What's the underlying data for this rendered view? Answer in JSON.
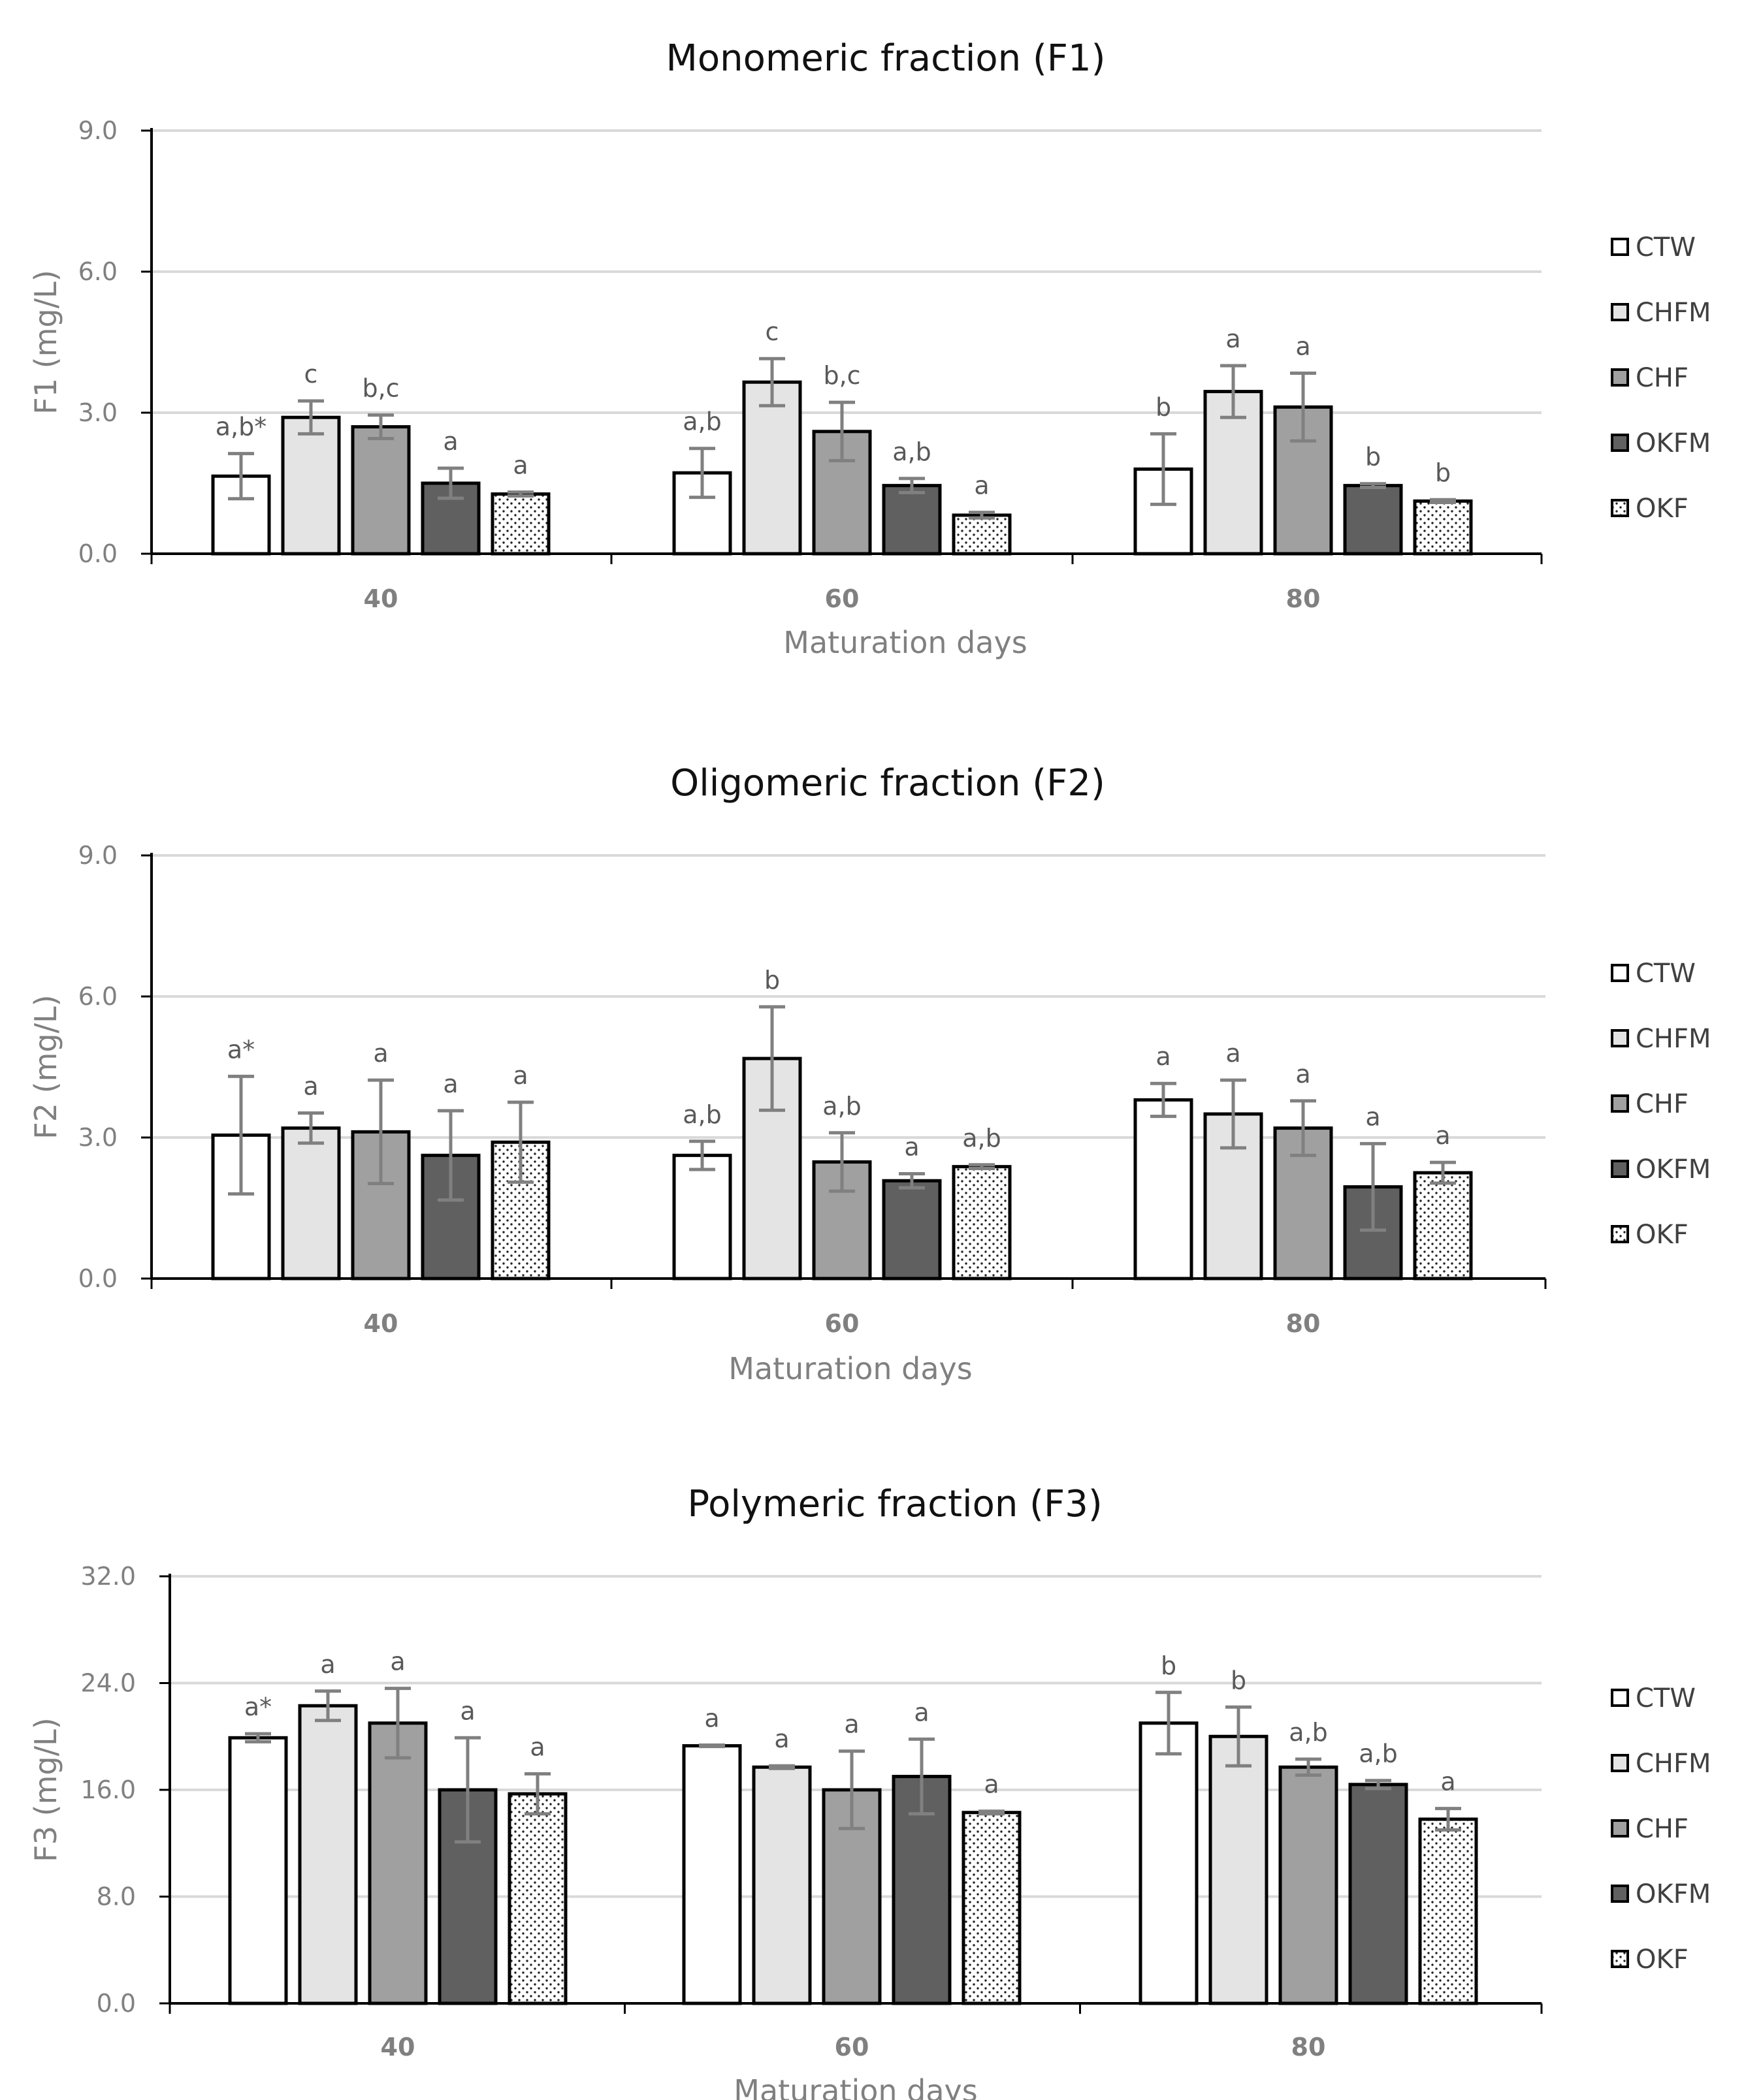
{
  "colors": {
    "CTW": "#ffffff",
    "CHFM": "#e4e4e4",
    "CHF": "#a0a0a0",
    "OKFM": "#606060",
    "OKF": "dots",
    "grid": "#d9d9d9",
    "error_bar": "#808080",
    "axis": "#000000"
  },
  "chart_data": [
    {
      "type": "bar",
      "title": "Monomeric fraction (F1)",
      "ylabel": "F1 (mg/L)",
      "xlabel": "Maturation days",
      "ylim": [
        0,
        9
      ],
      "yticks": [
        "0.0",
        "3.0",
        "6.0",
        "9.0"
      ],
      "categories": [
        "40",
        "60",
        "80"
      ],
      "legend": [
        "CTW",
        "CHFM",
        "CHF",
        "OKFM",
        "OKF"
      ],
      "series": [
        {
          "name": "CTW",
          "values": [
            1.65,
            1.72,
            1.8
          ],
          "errors": [
            0.48,
            0.52,
            0.75
          ],
          "labels": [
            "a,b*",
            "a,b",
            "b"
          ]
        },
        {
          "name": "CHFM",
          "values": [
            2.9,
            3.65,
            3.45
          ],
          "errors": [
            0.35,
            0.5,
            0.55
          ],
          "labels": [
            "c",
            "c",
            "a"
          ]
        },
        {
          "name": "CHF",
          "values": [
            2.7,
            2.6,
            3.12
          ],
          "errors": [
            0.25,
            0.62,
            0.72
          ],
          "labels": [
            "b,c",
            "b,c",
            "a"
          ]
        },
        {
          "name": "OKFM",
          "values": [
            1.5,
            1.45,
            1.45
          ],
          "errors": [
            0.32,
            0.15,
            0.04
          ],
          "labels": [
            "a",
            "a,b",
            "b"
          ]
        },
        {
          "name": "OKF",
          "values": [
            1.27,
            0.82,
            1.12
          ],
          "errors": [
            0.04,
            0.06,
            0.03
          ],
          "labels": [
            "a",
            "a",
            "b"
          ]
        }
      ]
    },
    {
      "type": "bar",
      "title": "Oligomeric fraction (F2)",
      "ylabel": "F2 (mg/L)",
      "xlabel": "Maturation days",
      "ylim": [
        0,
        9
      ],
      "yticks": [
        "0.0",
        "3.0",
        "6.0",
        "9.0"
      ],
      "categories": [
        "40",
        "60",
        "80"
      ],
      "legend": [
        "CTW",
        "CHFM",
        "CHF",
        "OKFM",
        "OKF"
      ],
      "series": [
        {
          "name": "CTW",
          "values": [
            3.05,
            2.62,
            3.8
          ],
          "errors": [
            1.25,
            0.3,
            0.35
          ],
          "labels": [
            "a*",
            "a,b",
            "a"
          ]
        },
        {
          "name": "CHFM",
          "values": [
            3.2,
            4.68,
            3.5
          ],
          "errors": [
            0.32,
            1.1,
            0.72
          ],
          "labels": [
            "a",
            "b",
            "a"
          ]
        },
        {
          "name": "CHF",
          "values": [
            3.12,
            2.48,
            3.2
          ],
          "errors": [
            1.1,
            0.62,
            0.58
          ],
          "labels": [
            "a",
            "a,b",
            "a"
          ]
        },
        {
          "name": "OKFM",
          "values": [
            2.62,
            2.08,
            1.95
          ],
          "errors": [
            0.95,
            0.15,
            0.92
          ],
          "labels": [
            "a",
            "a",
            "a"
          ]
        },
        {
          "name": "OKF",
          "values": [
            2.9,
            2.38,
            2.25
          ],
          "errors": [
            0.85,
            0.04,
            0.22
          ],
          "labels": [
            "a",
            "a,b",
            "a"
          ]
        }
      ]
    },
    {
      "type": "bar",
      "title": "Polymeric fraction (F3)",
      "ylabel": "F3 (mg/L)",
      "xlabel": "Maturation days",
      "ylim": [
        0,
        32
      ],
      "yticks": [
        "0.0",
        "8.0",
        "16.0",
        "24.0",
        "32.0"
      ],
      "categories": [
        "40",
        "60",
        "80"
      ],
      "legend": [
        "CTW",
        "CHFM",
        "CHF",
        "OKFM",
        "OKF"
      ],
      "series": [
        {
          "name": "CTW",
          "values": [
            19.9,
            19.3,
            21.0
          ],
          "errors": [
            0.3,
            0.05,
            2.3
          ],
          "labels": [
            "a*",
            "a",
            "b"
          ]
        },
        {
          "name": "CHFM",
          "values": [
            22.3,
            17.7,
            20.0
          ],
          "errors": [
            1.1,
            0.1,
            2.2
          ],
          "labels": [
            "a",
            "a",
            "b"
          ]
        },
        {
          "name": "CHF",
          "values": [
            21.0,
            16.0,
            17.7
          ],
          "errors": [
            2.6,
            2.9,
            0.6
          ],
          "labels": [
            "a",
            "a",
            "a,b"
          ]
        },
        {
          "name": "OKFM",
          "values": [
            16.0,
            17.0,
            16.4
          ],
          "errors": [
            3.9,
            2.8,
            0.3
          ],
          "labels": [
            "a",
            "a",
            "a,b"
          ]
        },
        {
          "name": "OKF",
          "values": [
            15.7,
            14.3,
            13.8
          ],
          "errors": [
            1.5,
            0.1,
            0.8
          ],
          "labels": [
            "a",
            "a",
            "a"
          ]
        }
      ]
    }
  ]
}
